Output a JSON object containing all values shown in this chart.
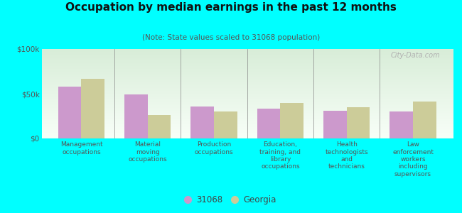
{
  "title": "Occupation by median earnings in the past 12 months",
  "subtitle": "(Note: State values scaled to 31068 population)",
  "background_color": "#00FFFF",
  "categories": [
    "Management\noccupations",
    "Material\nmoving\noccupations",
    "Production\noccupations",
    "Education,\ntraining, and\nlibrary\noccupations",
    "Health\ntechnologists\nand\ntechnicians",
    "Law\nenforcement\nworkers\nincluding\nsupervisors"
  ],
  "values_31068": [
    58000,
    49000,
    36000,
    33000,
    31000,
    30000
  ],
  "values_georgia": [
    67000,
    26000,
    30000,
    40000,
    35000,
    41000
  ],
  "color_31068": "#cc99cc",
  "color_georgia": "#cccc99",
  "ylim": [
    0,
    100000
  ],
  "yticks": [
    0,
    50000,
    100000
  ],
  "ytick_labels": [
    "$0",
    "$50k",
    "$100k"
  ],
  "legend_labels": [
    "31068",
    "Georgia"
  ],
  "watermark": "City-Data.com"
}
